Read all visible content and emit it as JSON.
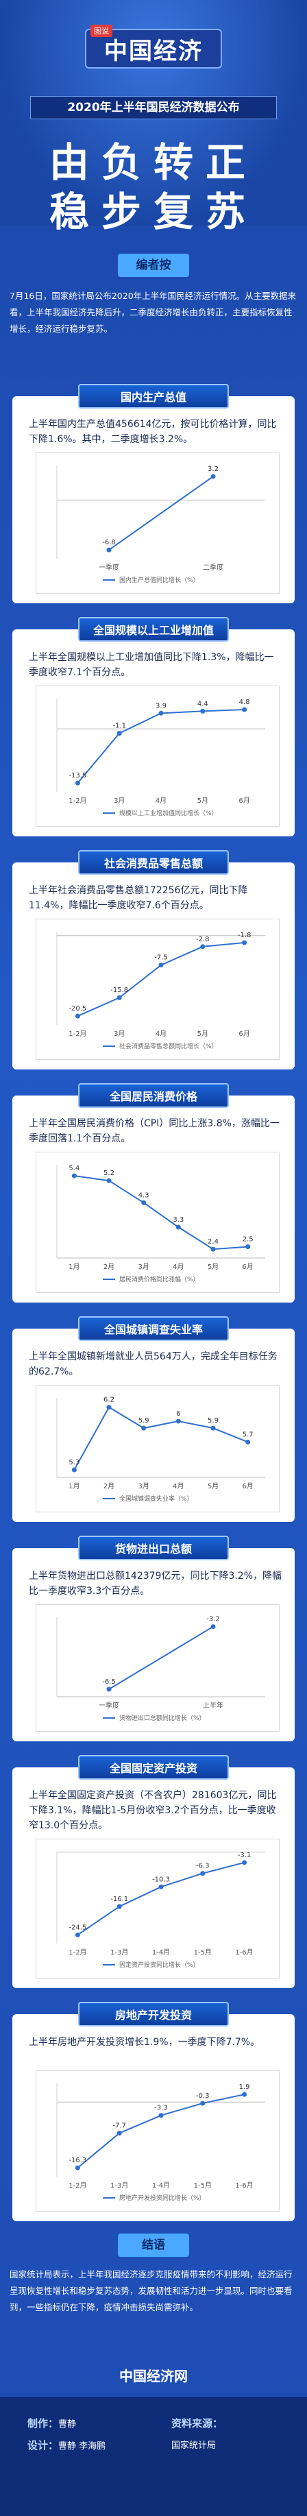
{
  "header": {
    "logo_tag": "图说",
    "logo_text": "中国经济",
    "headline": "2020年上半年国民经济数据公布",
    "title_line1": "由负转正",
    "title_line2": "稳步复苏"
  },
  "editor": {
    "badge": "编者按",
    "text": "7月16日，国家统计局公布2020年上半年国民经济运行情况。从主要数据来看，上半年我国经济先降后升，二季度经济增长由负转正，主要指标恢复性增长，经济运行稳步复苏。"
  },
  "sections": [
    {
      "title": "国内生产总值",
      "desc": "上半年国内生产总值456614亿元，按可比价格计算，同比下降1.6%。其中，二季度增长3.2%。"
    },
    {
      "title": "全国规模以上工业增加值",
      "desc": "上半年全国规模以上工业增加值同比下降1.3%，降幅比一季度收窄7.1个百分点。"
    },
    {
      "title": "社会消费品零售总额",
      "desc": "上半年社会消费品零售总额172256亿元，同比下降11.4%，降幅比一季度收窄7.6个百分点。"
    },
    {
      "title": "全国居民消费价格",
      "desc": "上半年全国居民消费价格（CPI）同比上涨3.8%，涨幅比一季度回落1.1个百分点。"
    },
    {
      "title": "全国城镇调查失业率",
      "desc": "上半年全国城镇新增就业人员564万人，完成全年目标任务的62.7%。"
    },
    {
      "title": "货物进出口总额",
      "desc": "上半年货物进出口总额142379亿元，同比下降3.2%，降幅比一季度收窄3.3个百分点。"
    },
    {
      "title": "全国固定资产投资",
      "desc": "上半年全国固定资产投资（不含农户）281603亿元，同比下降3.1%，降幅比1-5月份收窄3.2个百分点，比一季度收窄13.0个百分点。"
    },
    {
      "title": "房地产开发投资",
      "desc": "上半年房地产开发投资增长1.9%，一季度下降7.7%。"
    }
  ],
  "chart_data": [
    {
      "type": "line",
      "categories": [
        "一季度",
        "二季度"
      ],
      "values": [
        -6.8,
        3.2
      ],
      "legend": "国内生产总值同比增长（%）"
    },
    {
      "type": "line",
      "categories": [
        "1-2月",
        "3月",
        "4月",
        "5月",
        "6月"
      ],
      "values": [
        -13.5,
        -1.1,
        3.9,
        4.4,
        4.8
      ],
      "legend": "规模以上工业增加值同比增长（%）"
    },
    {
      "type": "line",
      "categories": [
        "1-2月",
        "3月",
        "4月",
        "5月",
        "6月"
      ],
      "values": [
        -20.5,
        -15.8,
        -7.5,
        -2.8,
        -1.8
      ],
      "legend": "社会消费品零售总额同比增长（%）"
    },
    {
      "type": "line",
      "categories": [
        "1月",
        "2月",
        "3月",
        "4月",
        "5月",
        "6月"
      ],
      "values": [
        5.4,
        5.2,
        4.3,
        3.3,
        2.4,
        2.5
      ],
      "legend": "居民消费价格同比涨幅（%）"
    },
    {
      "type": "line",
      "categories": [
        "1月",
        "2月",
        "3月",
        "4月",
        "5月",
        "6月"
      ],
      "values": [
        5.3,
        6.2,
        5.9,
        6.0,
        5.9,
        5.7
      ],
      "legend": "全国城镇调查失业率（%）"
    },
    {
      "type": "line",
      "categories": [
        "一季度",
        "上半年"
      ],
      "values": [
        -6.5,
        -3.2
      ],
      "legend": "货物进出口总额同比增长（%）"
    },
    {
      "type": "line",
      "categories": [
        "1-2月",
        "1-3月",
        "1-4月",
        "1-5月",
        "1-6月"
      ],
      "values": [
        -24.5,
        -16.1,
        -10.3,
        -6.3,
        -3.1
      ],
      "legend": "固定资产投资同比增长（%）"
    },
    {
      "type": "line",
      "categories": [
        "1-2月",
        "1-3月",
        "1-4月",
        "1-5月",
        "1-6月"
      ],
      "values": [
        -16.3,
        -7.7,
        -3.3,
        -0.3,
        1.9
      ],
      "legend": "房地产开发投资同比增长（%）"
    }
  ],
  "conclusion": {
    "badge": "结语",
    "text": "国家统计局表示，上半年我国经济逐步克服疫情带来的不利影响，经济运行呈现恢复性增长和稳步复苏态势，发展韧性和活力进一步显现。同时也要看到，一些指标仍在下降，疫情冲击损失尚需弥补。"
  },
  "footer": {
    "logo": "中国经济网",
    "producer_label": "制作：",
    "producer": "曹静",
    "designer_label": "设计：",
    "designer": "曹静 李海鹏",
    "source_label": "资料来源：",
    "source": "国家统计局"
  },
  "colors": {
    "primary": "#1f4fb5",
    "line": "#2f6fd0",
    "badge": "#4aa8ff"
  }
}
